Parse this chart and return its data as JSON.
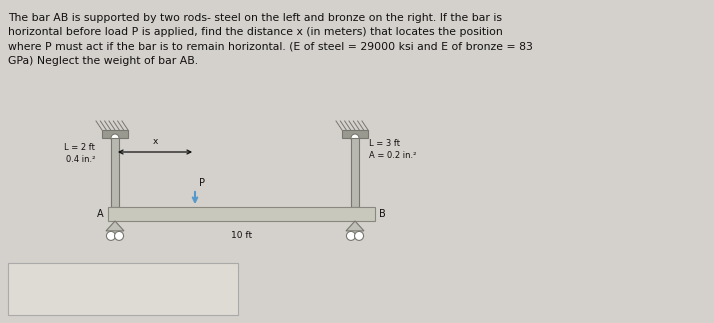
{
  "bg_color": "#d4d0cb",
  "text_color": "#111111",
  "title_text": "The bar AB is supported by two rods- steel on the left and bronze on the right. If the bar is\nhorizontal before load P is applied, find the distance x (in meters) that locates the position\nwhere P must act if the bar is to remain horizontal. (E of steel = 29000 ksi and E of bronze = 83\nGPa) Neglect the weight of bar AB.",
  "label_steel_L": "L = 2 ft",
  "label_steel_A": "0.4 in.²",
  "label_bronze_L": "L = 3 ft",
  "label_bronze_A": "A = 0.2 in.²",
  "label_bar_length": "10 ft",
  "label_P": "P",
  "label_x": "x",
  "label_A": "A",
  "label_B": "B",
  "rod_color": "#b8b8b0",
  "rod_border_color": "#777770",
  "bar_color": "#c8c8bc",
  "bar_border_color": "#888880",
  "wall_color": "#999990",
  "pin_color": "#c0c0b8",
  "arrow_color": "#5599cc",
  "answer_box_color": "#dedad4"
}
